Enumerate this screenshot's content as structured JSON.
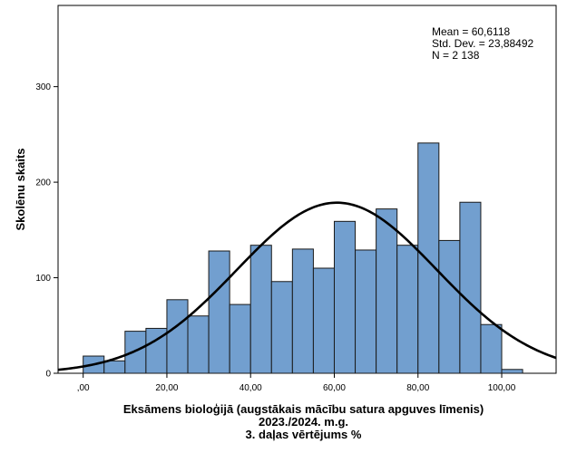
{
  "chart_data": {
    "type": "bar",
    "subtype": "histogram",
    "bin_width": 5,
    "bins_start": [
      0,
      5,
      10,
      15,
      20,
      25,
      30,
      35,
      40,
      45,
      50,
      55,
      60,
      65,
      70,
      75,
      80,
      85,
      90,
      95,
      100
    ],
    "values": [
      18,
      13,
      44,
      47,
      77,
      60,
      128,
      72,
      134,
      96,
      130,
      110,
      159,
      129,
      172,
      134,
      241,
      139,
      179,
      51,
      4
    ],
    "xlabel": [
      "Eksāmens bioloģijā  (augstākais mācību satura apguves līmenis)",
      "2023./2024. m.g.",
      "3. daļas vērtējums %"
    ],
    "ylabel": "Skolēnu skaits",
    "xlim": [
      -6,
      113
    ],
    "ylim": [
      0,
      385
    ],
    "x_ticks": [
      0,
      20,
      40,
      60,
      80,
      100
    ],
    "x_tick_labels": [
      ",00",
      "20,00",
      "40,00",
      "60,00",
      "80,00",
      "100,00"
    ],
    "y_ticks": [
      0,
      100,
      200,
      300
    ],
    "y_tick_labels": [
      "0",
      "100",
      "200",
      "300"
    ],
    "normal_curve": {
      "mean": 60.6118,
      "sd": 23.88492,
      "n": 2138
    },
    "stats": [
      "Mean = 60,6118",
      "Std. Dev. = 23,88492",
      "N = 2 138"
    ],
    "bar_color": "#729fcf",
    "bar_edge_color": "#1a1a1a",
    "curve_color": "#000000",
    "grid": false,
    "legend": "none",
    "stats_placement": "top-right"
  }
}
